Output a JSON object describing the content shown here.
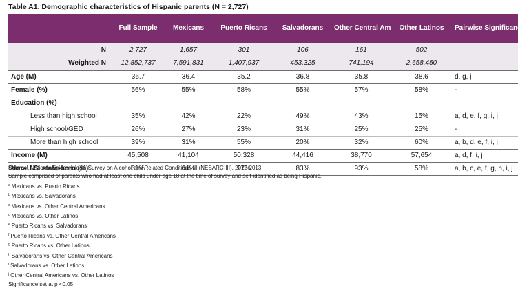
{
  "title": "Table A1. Demographic characteristics of Hispanic parents (N = 2,727)",
  "headers": [
    "Full Sample",
    "Mexicans",
    "Puerto Ricans",
    "Salvadorans",
    "Other Central Americans",
    "Other Latinos",
    "Pairwise Significance"
  ],
  "n_row": {
    "label": "N",
    "values": [
      "2,727",
      "1,657",
      "301",
      "106",
      "161",
      "502"
    ]
  },
  "weighted_n_row": {
    "label": "Weighted N",
    "values": [
      "12,852,737",
      "7,591,831",
      "1,407,937",
      "453,325",
      "741,194",
      "2,658,450"
    ]
  },
  "rows": [
    {
      "label": "Age (M)",
      "values": [
        "36.7",
        "36.4",
        "35.2",
        "36.8",
        "35.8",
        "38.6"
      ],
      "sig": "d, g, j"
    },
    {
      "label": "Female (%)",
      "values": [
        "56%",
        "55%",
        "58%",
        "55%",
        "57%",
        "58%"
      ],
      "sig": "-"
    },
    {
      "label": "Education (%)",
      "values": [
        "",
        "",
        "",
        "",
        "",
        ""
      ],
      "sig": ""
    },
    {
      "label": "Less than high school",
      "values": [
        "35%",
        "42%",
        "22%",
        "49%",
        "43%",
        "15%"
      ],
      "sig": "a, d, e, f, g, i, j"
    },
    {
      "label": "High school/GED",
      "values": [
        "26%",
        "27%",
        "23%",
        "31%",
        "25%",
        "25%"
      ],
      "sig": "-"
    },
    {
      "label": "More than high school",
      "values": [
        "39%",
        "31%",
        "55%",
        "20%",
        "32%",
        "60%"
      ],
      "sig": "a, b, d, e, f, i, j"
    },
    {
      "label": "Income (M)",
      "values": [
        "45,508",
        "41,104",
        "50,328",
        "44,416",
        "38,770",
        "57,654"
      ],
      "sig": "a, d, f, i, j"
    },
    {
      "label": "Non-U.S. state-born (%)",
      "values": [
        "61%",
        "64%",
        "27%",
        "83%",
        "93%",
        "58%"
      ],
      "sig": "a, b, c, e, f, g, h, i, j"
    }
  ],
  "notes": {
    "source_label": "Source:",
    "source_text": "National Epidemiologic Survey on Alcohol and Related Conditions-III (NESARC-III), 2012-2013.",
    "sample": "Sample comprised of parents who had at least one child under age 18 at the time of survey and self-identified as being Hispanic.",
    "footnotes": [
      {
        "mark": "a",
        "text": "Mexicans vs. Puerto Ricans"
      },
      {
        "mark": "b",
        "text": "Mexicans vs. Salvadorans"
      },
      {
        "mark": "c",
        "text": "Mexicans vs. Other Central Americans"
      },
      {
        "mark": "d",
        "text": "Mexicans vs. Other Latinos"
      },
      {
        "mark": "e",
        "text": "Puerto Ricans vs. Salvadorans"
      },
      {
        "mark": "f",
        "text": "Puerto Ricans vs. Other Central Americans"
      },
      {
        "mark": "g",
        "text": "Puerto Ricans vs. Other Latinos"
      },
      {
        "mark": "h",
        "text": "Salvadorans vs. Other Central Americans"
      },
      {
        "mark": "i",
        "text": "Salvadorans vs. Other Latinos"
      },
      {
        "mark": "j",
        "text": "Other Central Americans vs. Other Latinos"
      }
    ],
    "significance": "Significance set at p <0.05"
  }
}
